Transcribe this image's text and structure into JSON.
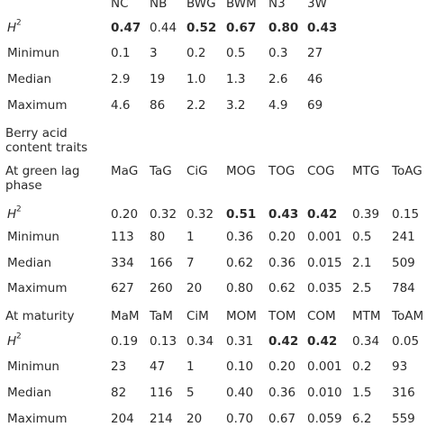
{
  "sections": [
    {
      "header": [
        "NC",
        "NB",
        "BWG",
        "BWM",
        "N3",
        "3W"
      ],
      "rows": [
        {
          "label": "H",
          "sup": "2",
          "values": [
            "0.47",
            "0.44",
            "0.52",
            "0.67",
            "0.80",
            "0.43"
          ],
          "bold": [
            0,
            2,
            3,
            4,
            5
          ]
        },
        {
          "label": "Minimun",
          "values": [
            "0.1",
            "3",
            "0.2",
            "0.5",
            "0.3",
            "27"
          ],
          "bold": []
        },
        {
          "label": "Median",
          "values": [
            "2.9",
            "19",
            "1.0",
            "1.3",
            "2.6",
            "46"
          ],
          "bold": []
        },
        {
          "label": "Maximum",
          "values": [
            "4.6",
            "86",
            "2.2",
            "3.2",
            "4.9",
            "69"
          ],
          "bold": []
        }
      ]
    },
    {
      "title": [
        "Berry acid",
        "content traits"
      ],
      "label": [
        "At green lag",
        "phase"
      ],
      "header": [
        "MaG",
        "TaG",
        "CiG",
        "MOG",
        "TOG",
        "COG",
        "MTG",
        "ToAG"
      ],
      "rows": [
        {
          "label": "H",
          "sup": "2",
          "values": [
            "0.20",
            "0.32",
            "0.32",
            "0.51",
            "0.43",
            "0.42",
            "0.39",
            "0.15"
          ],
          "bold": [
            3,
            4,
            5
          ]
        },
        {
          "label": "Minimun",
          "values": [
            "113",
            "80",
            "1",
            "0.36",
            "0.20",
            "0.001",
            "0.5",
            "241"
          ],
          "bold": []
        },
        {
          "label": "Median",
          "values": [
            "334",
            "166",
            "7",
            "0.62",
            "0.36",
            "0.015",
            "2.1",
            "509"
          ],
          "bold": []
        },
        {
          "label": "Maximum",
          "values": [
            "627",
            "260",
            "20",
            "0.80",
            "0.62",
            "0.035",
            "2.5",
            "784"
          ],
          "bold": []
        }
      ]
    },
    {
      "label": [
        "At maturity"
      ],
      "header": [
        "MaM",
        "TaM",
        "CiM",
        "MOM",
        "TOM",
        "COM",
        "MTM",
        "ToAM"
      ],
      "rows": [
        {
          "label": "H",
          "sup": "2",
          "values": [
            "0.19",
            "0.13",
            "0.34",
            "0.31",
            "0.42",
            "0.42",
            "0.34",
            "0.05"
          ],
          "bold": [
            4,
            5
          ]
        },
        {
          "label": "Minimun",
          "values": [
            "23",
            "47",
            "1",
            "0.10",
            "0.20",
            "0.001",
            "0.2",
            "93"
          ],
          "bold": []
        },
        {
          "label": "Median",
          "values": [
            "82",
            "116",
            "5",
            "0.40",
            "0.36",
            "0.010",
            "1.5",
            "316"
          ],
          "bold": []
        },
        {
          "label": "Maximum",
          "values": [
            "204",
            "214",
            "20",
            "0.70",
            "0.67",
            "0.059",
            "6.2",
            "559"
          ],
          "bold": []
        }
      ]
    }
  ]
}
